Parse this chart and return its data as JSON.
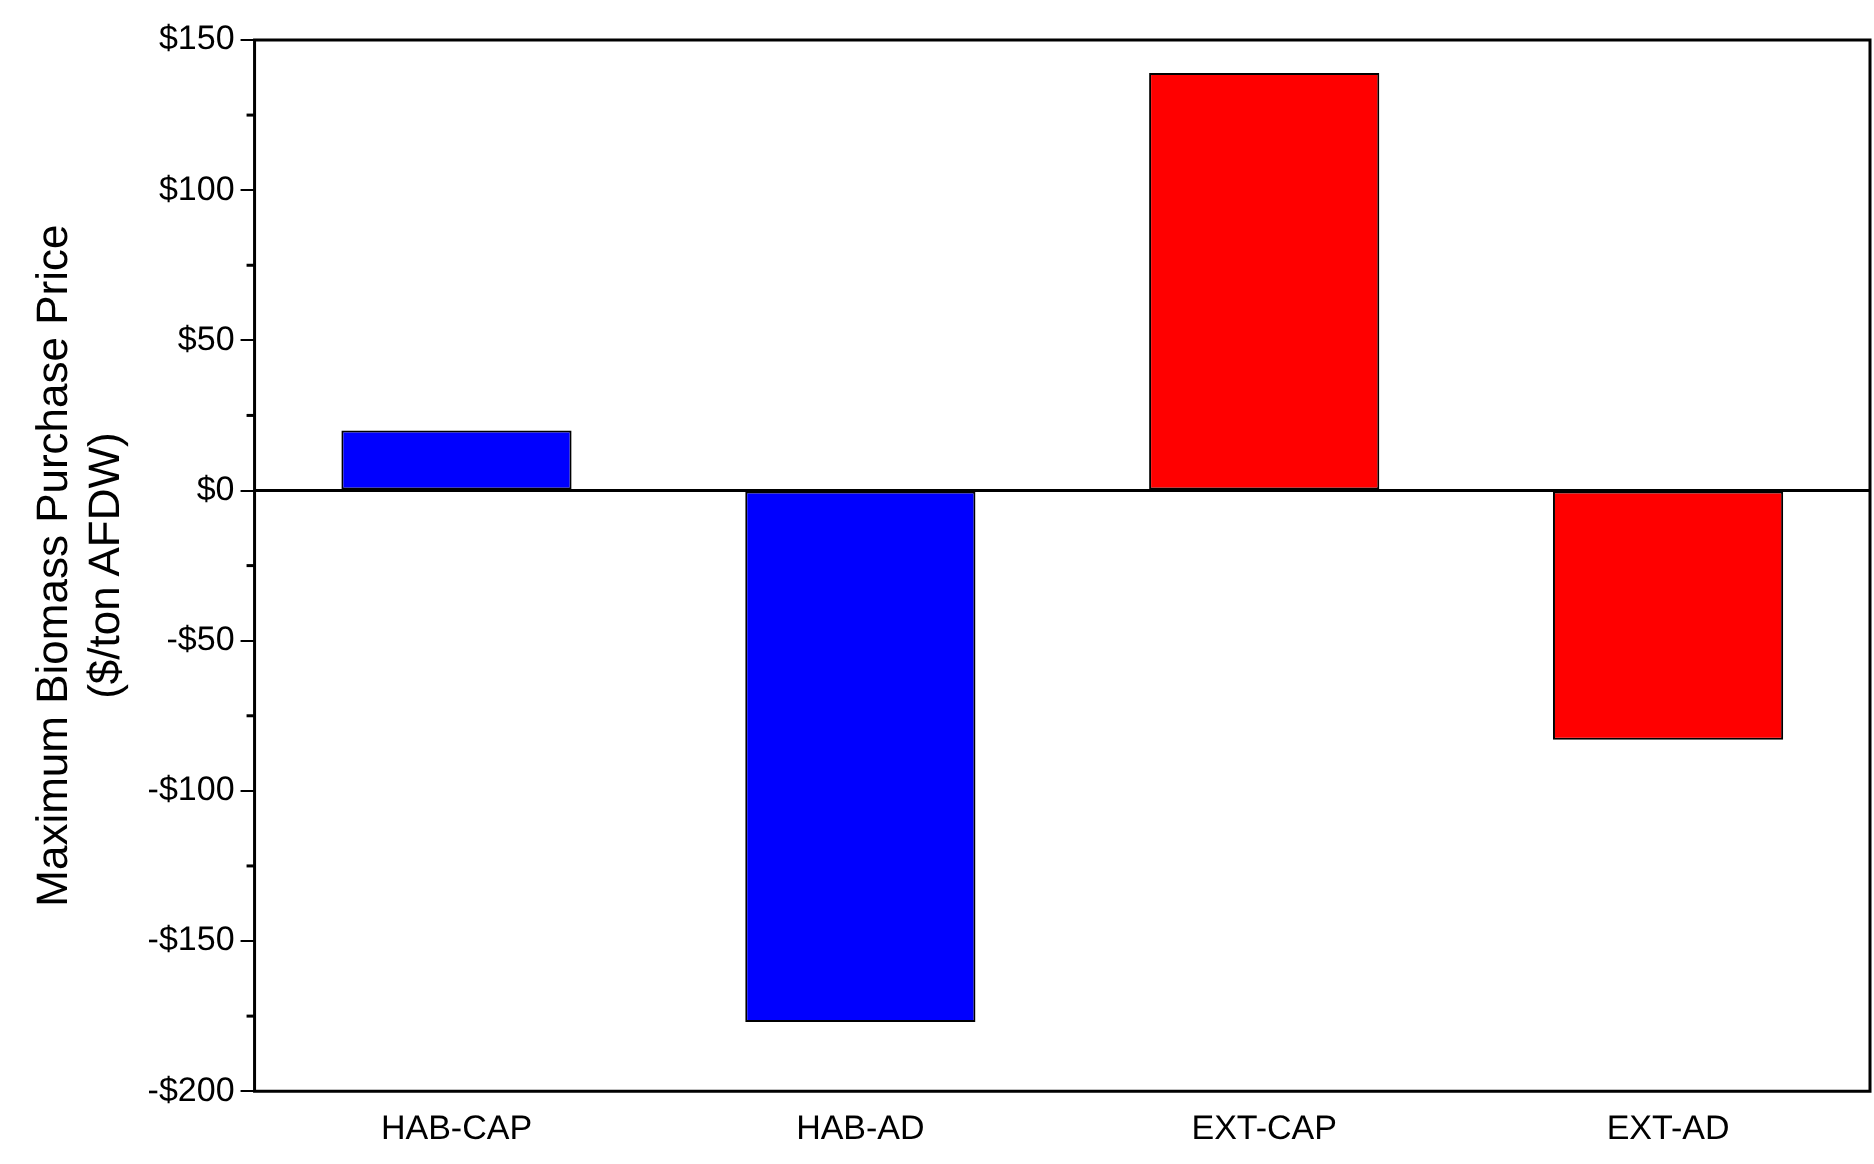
{
  "chart_data": {
    "type": "bar",
    "ylabel": "Maximum Biomass Purchase Price\n($/ton AFDW)",
    "categories": [
      "HAB-CAP",
      "HAB-AD",
      "EXT-CAP",
      "EXT-AD"
    ],
    "values": [
      20,
      -177,
      139,
      -83
    ],
    "colors": [
      "#0000ff",
      "#0000ff",
      "#ff0000",
      "#ff0000"
    ],
    "ylim": [
      -200,
      150
    ],
    "yticks": [
      {
        "value": -200,
        "label": "-$200"
      },
      {
        "value": -150,
        "label": "-$150"
      },
      {
        "value": -100,
        "label": "-$100"
      },
      {
        "value": -50,
        "label": "-$50"
      },
      {
        "value": 0,
        "label": "$0"
      },
      {
        "value": 50,
        "label": "$50"
      },
      {
        "value": 100,
        "label": "$100"
      },
      {
        "value": 150,
        "label": "$150"
      }
    ],
    "ref_lines": [
      {
        "axis": "y",
        "value": 0,
        "color": "#000000"
      }
    ],
    "grid": false,
    "legend": false
  }
}
